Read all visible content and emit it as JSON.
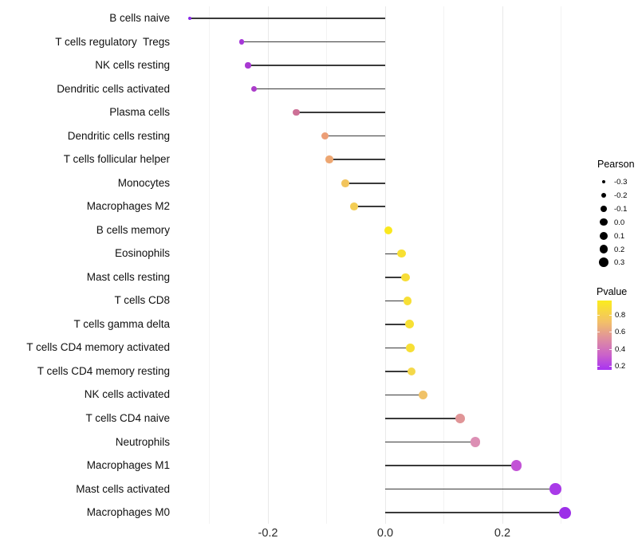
{
  "chart_data": {
    "type": "scatter",
    "variant": "horizontal-lollipop",
    "title": "",
    "xlabel": "",
    "ylabel": "",
    "xlim": [
      -0.36,
      0.33
    ],
    "x_ticks": [
      {
        "value": -0.2,
        "label": "-0.2"
      },
      {
        "value": 0.0,
        "label": "0.0"
      },
      {
        "value": 0.2,
        "label": "0.2"
      }
    ],
    "grid": {
      "minor_values": [
        -0.3,
        -0.1,
        0.1,
        0.3
      ],
      "major_values": [
        -0.2,
        0.0,
        0.2
      ],
      "minor_color": "#f3f3f3",
      "major_color": "#e9e9e9"
    },
    "stem_color": "#3a3a3a",
    "categories": [
      "B cells naive",
      "T cells regulatory  Tregs",
      "NK cells resting",
      "Dendritic cells activated",
      "Plasma cells",
      "Dendritic cells resting",
      "T cells follicular helper",
      "Monocytes",
      "Macrophages M2",
      "B cells memory",
      "Eosinophils",
      "Mast cells resting",
      "T cells CD8",
      "T cells gamma delta",
      "T cells CD4 memory activated",
      "T cells CD4 memory resting",
      "NK cells activated",
      "T cells CD4 naive",
      "Neutrophils",
      "Macrophages M1",
      "Mast cells activated",
      "Macrophages M0"
    ],
    "points": [
      {
        "label": "B cells naive",
        "pearson": -0.333,
        "pvalue_approx": 0.1,
        "color": "#8829e8",
        "radius": 2.0
      },
      {
        "label": "T cells regulatory  Tregs",
        "pearson": -0.245,
        "pvalue_approx": 0.2,
        "color": "#a637d8",
        "radius": 3.4
      },
      {
        "label": "NK cells resting",
        "pearson": -0.234,
        "pvalue_approx": 0.21,
        "color": "#a838d2",
        "radius": 3.6
      },
      {
        "label": "Dendritic cells activated",
        "pearson": -0.224,
        "pvalue_approx": 0.23,
        "color": "#ab3cca",
        "radius": 3.7
      },
      {
        "label": "Plasma cells",
        "pearson": -0.152,
        "pvalue_approx": 0.45,
        "color": "#cd7096",
        "radius": 4.3
      },
      {
        "label": "Dendritic cells resting",
        "pearson": -0.103,
        "pvalue_approx": 0.64,
        "color": "#ec9e76",
        "radius": 4.6
      },
      {
        "label": "T cells follicular helper",
        "pearson": -0.095,
        "pvalue_approx": 0.66,
        "color": "#eda671",
        "radius": 4.7
      },
      {
        "label": "Monocytes",
        "pearson": -0.068,
        "pvalue_approx": 0.74,
        "color": "#f2c45c",
        "radius": 4.8
      },
      {
        "label": "Macrophages M2",
        "pearson": -0.053,
        "pvalue_approx": 0.77,
        "color": "#f3cd54",
        "radius": 4.9
      },
      {
        "label": "B cells memory",
        "pearson": 0.005,
        "pvalue_approx": 0.96,
        "color": "#fae81e",
        "radius": 5.1
      },
      {
        "label": "Eosinophils",
        "pearson": 0.028,
        "pvalue_approx": 0.9,
        "color": "#f8e032",
        "radius": 5.2
      },
      {
        "label": "Mast cells resting",
        "pearson": 0.035,
        "pvalue_approx": 0.88,
        "color": "#f7dd38",
        "radius": 5.3
      },
      {
        "label": "T cells CD8",
        "pearson": 0.038,
        "pvalue_approx": 0.89,
        "color": "#f7df36",
        "radius": 5.3
      },
      {
        "label": "T cells gamma delta",
        "pearson": 0.042,
        "pvalue_approx": 0.89,
        "color": "#f7e034",
        "radius": 5.4
      },
      {
        "label": "T cells CD4 memory activated",
        "pearson": 0.043,
        "pvalue_approx": 0.89,
        "color": "#f7df36",
        "radius": 5.4
      },
      {
        "label": "T cells CD4 memory resting",
        "pearson": 0.045,
        "pvalue_approx": 0.85,
        "color": "#f4d84a",
        "radius": 5.4
      },
      {
        "label": "NK cells activated",
        "pearson": 0.065,
        "pvalue_approx": 0.74,
        "color": "#f0c268",
        "radius": 5.5
      },
      {
        "label": "T cells CD4 naive",
        "pearson": 0.128,
        "pvalue_approx": 0.5,
        "color": "#e09597",
        "radius": 5.9
      },
      {
        "label": "Neutrophils",
        "pearson": 0.154,
        "pvalue_approx": 0.44,
        "color": "#dc8fb4",
        "radius": 6.2
      },
      {
        "label": "Macrophages M1",
        "pearson": 0.224,
        "pvalue_approx": 0.28,
        "color": "#c253d6",
        "radius": 6.6
      },
      {
        "label": "Mast cells activated",
        "pearson": 0.291,
        "pvalue_approx": 0.16,
        "color": "#a93ae8",
        "radius": 7.4
      },
      {
        "label": "Macrophages M0",
        "pearson": 0.307,
        "pvalue_approx": 0.13,
        "color": "#9c2fe8",
        "radius": 7.6
      }
    ],
    "legends": {
      "size": {
        "title": "Pearson",
        "items": [
          {
            "label": "-0.3",
            "radius": 2.3
          },
          {
            "label": "-0.2",
            "radius": 3.3
          },
          {
            "label": "-0.1",
            "radius": 4.0
          },
          {
            "label": "0.0",
            "radius": 4.7
          },
          {
            "label": "0.1",
            "radius": 5.0
          },
          {
            "label": "0.2",
            "radius": 5.4
          },
          {
            "label": "0.3",
            "radius": 6.0
          }
        ],
        "dot_color": "#000000"
      },
      "color": {
        "title": "Pvalue",
        "tick_labels": [
          "0.8",
          "0.6",
          "0.4",
          "0.2"
        ],
        "tick_values": [
          0.8,
          0.6,
          0.4,
          0.2
        ],
        "bar_range": [
          0.155,
          0.97
        ],
        "gradient_stops": [
          {
            "pos": 0.0,
            "color": "#fbec1e"
          },
          {
            "pos": 0.3,
            "color": "#f3c266"
          },
          {
            "pos": 0.55,
            "color": "#df8f9f"
          },
          {
            "pos": 0.78,
            "color": "#cb63c9"
          },
          {
            "pos": 1.0,
            "color": "#a833f2"
          }
        ]
      }
    },
    "background_color": "#ffffff"
  }
}
